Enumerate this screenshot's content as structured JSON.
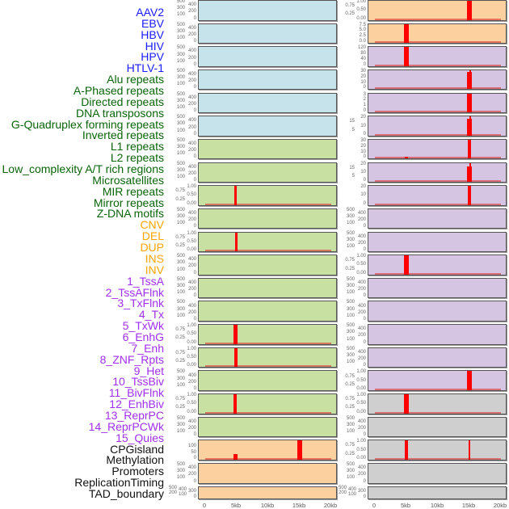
{
  "chart_data": {
    "type": "bar",
    "title": "",
    "xlabel": "",
    "x_ticks": [
      "0",
      "5kb",
      "10kb",
      "15kb",
      "20kb"
    ],
    "xlim_kb": [
      0,
      20
    ],
    "labels": [
      {
        "text": "AAV2",
        "color": "#1a1aff"
      },
      {
        "text": "EBV",
        "color": "#1a1aff"
      },
      {
        "text": "HBV",
        "color": "#1a1aff"
      },
      {
        "text": "HIV",
        "color": "#1a1aff"
      },
      {
        "text": "HPV",
        "color": "#1a1aff"
      },
      {
        "text": "HTLV-1",
        "color": "#1a1aff"
      },
      {
        "text": "Alu repeats",
        "color": "#0a640a"
      },
      {
        "text": "A-Phased repeats",
        "color": "#0a640a"
      },
      {
        "text": "Directed repeats",
        "color": "#0a640a"
      },
      {
        "text": "DNA transposons",
        "color": "#0a640a"
      },
      {
        "text": "G-Quadruplex forming repeats",
        "color": "#0a640a"
      },
      {
        "text": "Inverted repeats",
        "color": "#0a640a"
      },
      {
        "text": "L1 repeats",
        "color": "#0a640a"
      },
      {
        "text": "L2 repeats",
        "color": "#0a640a"
      },
      {
        "text": "Low_complexity A/T rich regions",
        "color": "#0a640a"
      },
      {
        "text": "Microsatellites",
        "color": "#0a640a"
      },
      {
        "text": "MIR repeats",
        "color": "#0a640a"
      },
      {
        "text": "Mirror repeats",
        "color": "#0a640a"
      },
      {
        "text": "Z-DNA motifs",
        "color": "#0a640a"
      },
      {
        "text": "CNV",
        "color": "#ffa500"
      },
      {
        "text": "DEL",
        "color": "#ffa500"
      },
      {
        "text": "DUP",
        "color": "#ffa500"
      },
      {
        "text": "INS",
        "color": "#ffa500"
      },
      {
        "text": "INV",
        "color": "#ffa500"
      },
      {
        "text": "1_TssA",
        "color": "#a030f0"
      },
      {
        "text": "2_TssAFlnk",
        "color": "#a030f0"
      },
      {
        "text": "3_TxFlnk",
        "color": "#a030f0"
      },
      {
        "text": "4_Tx",
        "color": "#a030f0"
      },
      {
        "text": "5_TxWk",
        "color": "#a030f0"
      },
      {
        "text": "6_EnhG",
        "color": "#a030f0"
      },
      {
        "text": "7_Enh",
        "color": "#a030f0"
      },
      {
        "text": "8_ZNF_Rpts",
        "color": "#a030f0"
      },
      {
        "text": "9_Het",
        "color": "#a030f0"
      },
      {
        "text": "10_TssBiv",
        "color": "#a030f0"
      },
      {
        "text": "11_BivFlnk",
        "color": "#a030f0"
      },
      {
        "text": "12_EnhBiv",
        "color": "#a030f0"
      },
      {
        "text": "13_ReprPC",
        "color": "#a030f0"
      },
      {
        "text": "14_ReprPCWk",
        "color": "#a030f0"
      },
      {
        "text": "15_Quies",
        "color": "#a030f0"
      },
      {
        "text": "CPGisland",
        "color": "#111111"
      },
      {
        "text": "Methylation",
        "color": "#111111"
      },
      {
        "text": "Promoters",
        "color": "#111111"
      },
      {
        "text": "ReplicationTiming",
        "color": "#111111"
      },
      {
        "text": "TAD_boundary",
        "color": "#111111"
      }
    ],
    "colors": {
      "blue": "#c6e3eb",
      "green": "#c8e0a2",
      "orange": "#fdd09f",
      "purple": "#d5c5e2",
      "gray": "#cfcfcf",
      "bar": "#ff0000"
    },
    "rows": [
      {
        "left": {
          "bg": "blue",
          "ticks": [
            "0",
            "100",
            "200",
            "300",
            "400",
            "500"
          ],
          "bars": []
        },
        "right": {
          "bg": "orange",
          "ticks": [
            "0.00",
            "0.25",
            "0.50",
            "0.75",
            "1.00"
          ],
          "bars": [
            {
              "x": 15,
              "v": 1,
              "w": 0.35
            }
          ]
        }
      },
      {
        "left": {
          "bg": "blue",
          "ticks": [
            "0",
            "100",
            "200",
            "300",
            "400",
            "500"
          ],
          "bars": []
        },
        "right": {
          "bg": "orange",
          "ticks": [
            "0.0",
            "2.5",
            "5.0",
            "7.5"
          ],
          "bars": [
            {
              "x": 5,
              "v": 1,
              "w": 0.35
            }
          ]
        }
      },
      {
        "left": {
          "bg": "blue",
          "ticks": [
            "0",
            "100",
            "200",
            "300",
            "400",
            "500"
          ],
          "bars": []
        },
        "right": {
          "bg": "purple",
          "ticks": [
            "0",
            "40",
            "80",
            "120"
          ],
          "bars": [
            {
              "x": 5,
              "v": 1,
              "w": 0.35
            }
          ]
        }
      },
      {
        "left": {
          "bg": "blue",
          "ticks": [
            "0",
            "100",
            "200",
            "300",
            "400",
            "500"
          ],
          "bars": []
        },
        "right": {
          "bg": "purple",
          "ticks": [
            "0",
            "10",
            "20",
            "30"
          ],
          "bars": [
            {
              "x": 15,
              "v": 0.9,
              "w": 0.35
            },
            {
              "x": 15.1,
              "v": 1,
              "w": 0.15
            }
          ]
        }
      },
      {
        "left": {
          "bg": "blue",
          "ticks": [
            "0",
            "100",
            "200",
            "300",
            "400",
            "500"
          ],
          "bars": []
        },
        "right": {
          "bg": "purple",
          "ticks": [
            "0",
            "1",
            "2",
            "3"
          ],
          "bars": [
            {
              "x": 15,
              "v": 1,
              "w": 0.35
            }
          ]
        }
      },
      {
        "left": {
          "bg": "blue",
          "ticks": [
            "0",
            "100",
            "200",
            "300",
            "400",
            "500"
          ],
          "bars": []
        },
        "right": {
          "bg": "purple",
          "ticks": [
            "0",
            "5",
            "10",
            "15",
            "20"
          ],
          "bars": [
            {
              "x": 15,
              "v": 0.87,
              "w": 0.35
            },
            {
              "x": 15.1,
              "v": 1,
              "w": 0.15
            }
          ]
        }
      },
      {
        "left": {
          "bg": "green",
          "ticks": [
            "0",
            "100",
            "200",
            "300",
            "400",
            "500"
          ],
          "bars": []
        },
        "right": {
          "bg": "purple",
          "ticks": [
            "0",
            "10",
            "20",
            "30"
          ],
          "bars": [
            {
              "x": 5,
              "v": 0.12,
              "w": 0.3
            },
            {
              "x": 15,
              "v": 1,
              "w": 0.3
            },
            {
              "x": 15.15,
              "v": 0.85,
              "w": 0.15
            }
          ]
        }
      },
      {
        "left": {
          "bg": "green",
          "ticks": [
            "0",
            "100",
            "200",
            "300",
            "400",
            "500"
          ],
          "bars": []
        },
        "right": {
          "bg": "purple",
          "ticks": [
            "0",
            "5",
            "10",
            "15",
            "20"
          ],
          "bars": [
            {
              "x": 15,
              "v": 0.82,
              "w": 0.35
            },
            {
              "x": 15.1,
              "v": 1,
              "w": 0.15
            }
          ]
        }
      },
      {
        "left": {
          "bg": "green",
          "ticks": [
            "0.00",
            "0.25",
            "0.50",
            "0.75",
            "1.00"
          ],
          "bars": [
            {
              "x": 4.8,
              "v": 1,
              "w": 0.18
            }
          ]
        },
        "right": {
          "bg": "purple",
          "ticks": [
            "0",
            "10",
            "20"
          ],
          "bars": [
            {
              "x": 15,
              "v": 1,
              "w": 0.3
            },
            {
              "x": 15.15,
              "v": 0.85,
              "w": 0.15
            }
          ]
        }
      },
      {
        "left": {
          "bg": "green",
          "ticks": [
            "0",
            "100",
            "200",
            "300",
            "400",
            "500"
          ],
          "bars": []
        },
        "right": {
          "bg": "purple",
          "ticks": [
            "0",
            "100",
            "200",
            "300",
            "400",
            "500"
          ],
          "bars": []
        }
      },
      {
        "left": {
          "bg": "green",
          "ticks": [
            "0.00",
            "0.25",
            "0.50",
            "0.75",
            "1.00"
          ],
          "bars": [
            {
              "x": 4.9,
              "v": 1,
              "w": 0.18
            }
          ]
        },
        "right": {
          "bg": "purple",
          "ticks": [
            "0",
            "100",
            "200",
            "300",
            "400",
            "500"
          ],
          "bars": []
        }
      },
      {
        "left": {
          "bg": "green",
          "ticks": [
            "0",
            "100",
            "200",
            "300",
            "400",
            "500"
          ],
          "bars": []
        },
        "right": {
          "bg": "purple",
          "ticks": [
            "0.00",
            "0.25",
            "0.50",
            "0.75",
            "1.00"
          ],
          "bars": [
            {
              "x": 5,
              "v": 1,
              "w": 0.35
            }
          ]
        }
      },
      {
        "left": {
          "bg": "green",
          "ticks": [
            "0",
            "100",
            "200",
            "300",
            "400",
            "500"
          ],
          "bars": []
        },
        "right": {
          "bg": "purple",
          "ticks": [
            "0",
            "100",
            "200",
            "300",
            "400",
            "500"
          ],
          "bars": []
        }
      },
      {
        "left": {
          "bg": "green",
          "ticks": [
            "0",
            "100",
            "200",
            "300",
            "400",
            "500"
          ],
          "bars": []
        },
        "right": {
          "bg": "purple",
          "ticks": [
            "0",
            "100",
            "200",
            "300",
            "400",
            "500"
          ],
          "bars": []
        }
      },
      {
        "left": {
          "bg": "green",
          "ticks": [
            "0.00",
            "0.25",
            "0.50",
            "0.75",
            "1.00"
          ],
          "bars": [
            {
              "x": 4.8,
              "v": 1,
              "w": 0.35
            }
          ]
        },
        "right": {
          "bg": "purple",
          "ticks": [
            "0",
            "100",
            "200",
            "300",
            "400",
            "500"
          ],
          "bars": []
        }
      },
      {
        "left": {
          "bg": "green",
          "ticks": [
            "0.00",
            "0.25",
            "0.50",
            "0.75",
            "1.00"
          ],
          "bars": [
            {
              "x": 4.9,
              "v": 1,
              "w": 0.25
            }
          ]
        },
        "right": {
          "bg": "purple",
          "ticks": [
            "0",
            "100",
            "200",
            "300",
            "400",
            "500"
          ],
          "bars": []
        }
      },
      {
        "left": {
          "bg": "green",
          "ticks": [
            "0",
            "100",
            "200",
            "300",
            "400",
            "500"
          ],
          "bars": []
        },
        "right": {
          "bg": "purple",
          "ticks": [
            "0.00",
            "0.25",
            "0.50",
            "0.75",
            "1.00"
          ],
          "bars": [
            {
              "x": 15,
              "v": 1,
              "w": 0.35
            }
          ]
        }
      },
      {
        "left": {
          "bg": "green",
          "ticks": [
            "0.00",
            "0.25",
            "0.50",
            "0.75",
            "1.00"
          ],
          "bars": [
            {
              "x": 4.8,
              "v": 1,
              "w": 0.25
            }
          ]
        },
        "right": {
          "bg": "gray",
          "ticks": [
            "0.00",
            "0.25",
            "0.50",
            "0.75",
            "1.00"
          ],
          "bars": [
            {
              "x": 5,
              "v": 1,
              "w": 0.35
            }
          ]
        }
      },
      {
        "left": {
          "bg": "green",
          "ticks": [
            "0",
            "100",
            "200",
            "300",
            "400",
            "500"
          ],
          "bars": []
        },
        "right": {
          "bg": "gray",
          "ticks": [
            "0",
            "100",
            "200",
            "300",
            "400",
            "500"
          ],
          "bars": []
        }
      },
      {
        "left": {
          "bg": "orange",
          "ticks": [
            "0",
            "50",
            "100"
          ],
          "bars": [
            {
              "x": 4.8,
              "v": 0.3,
              "w": 0.35
            },
            {
              "x": 15,
              "v": 1,
              "w": 0.35
            }
          ],
          "ymax": 140
        },
        "right": {
          "bg": "gray",
          "ticks": [
            "0.00",
            "0.25",
            "0.50",
            "0.75",
            "1.00"
          ],
          "bars": [
            {
              "x": 5,
              "v": 1,
              "w": 0.25
            },
            {
              "x": 15,
              "v": 1,
              "w": 0.15
            }
          ]
        }
      },
      {
        "left": {
          "bg": "orange",
          "ticks": [
            "0",
            "100",
            "200",
            "300",
            "400",
            "500"
          ],
          "bars": []
        },
        "right": {
          "bg": "gray",
          "ticks": [
            "0",
            "100",
            "200",
            "300",
            "400",
            "500"
          ],
          "bars": []
        }
      },
      {
        "left": {
          "bg": "orange",
          "ticks": [
            "0",
            "100",
            "200",
            "300",
            "400",
            "500"
          ],
          "bars": []
        },
        "right": {
          "bg": "gray",
          "ticks": [
            "0",
            "100",
            "200",
            "300",
            "400",
            "500"
          ],
          "bars": []
        }
      }
    ]
  }
}
